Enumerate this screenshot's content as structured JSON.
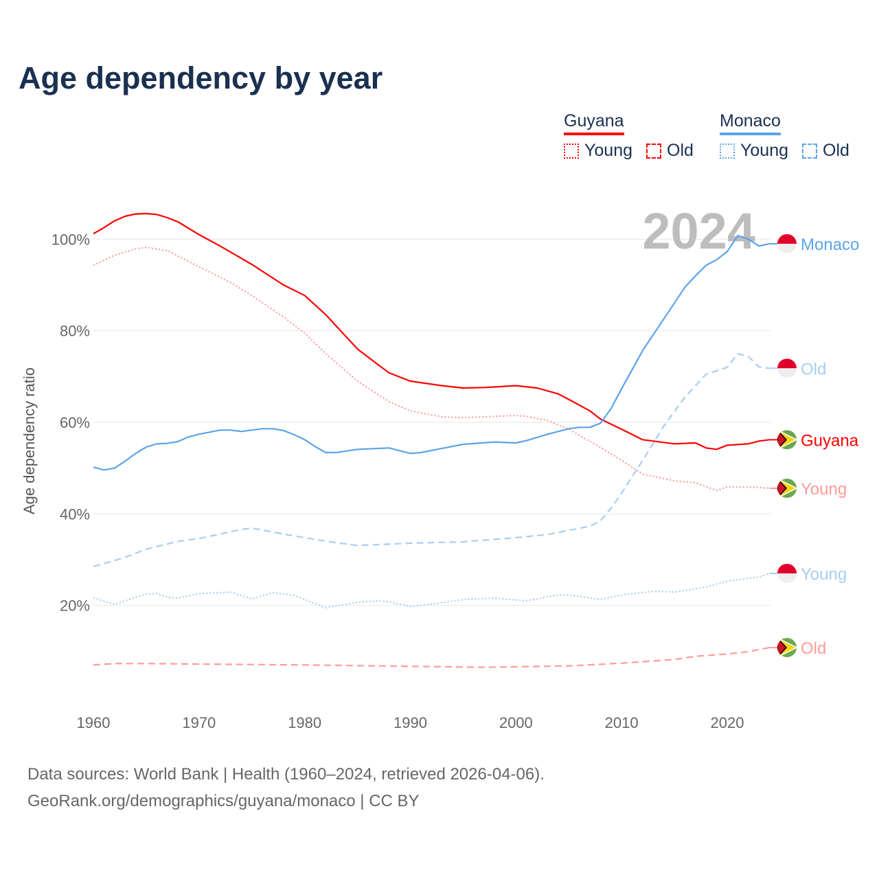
{
  "title": "Age dependency by year",
  "legend": {
    "guyana": "Guyana",
    "monaco": "Monaco",
    "young": "Young",
    "old": "Old"
  },
  "year_label": "2024",
  "source_line1": "Data sources: World Bank | Health (1960–2024, retrieved 2026-04-06).",
  "source_line2": "GeoRank.org/demographics/guyana/monaco | CC BY",
  "colors": {
    "guyana": "#ff0000",
    "guyana_light": "#ff9a9a",
    "monaco": "#5ba3e8",
    "monaco_light": "#a9cdf2"
  },
  "chart_data": {
    "type": "line",
    "title": "Age dependency by year",
    "xlabel": "",
    "ylabel": "Age dependency ratio",
    "xlim": [
      1960,
      2024
    ],
    "ylim": [
      0,
      110
    ],
    "xticks": [
      "1960",
      "1970",
      "1980",
      "1990",
      "2000",
      "2010",
      "2020"
    ],
    "yticks": [
      "20%",
      "40%",
      "60%",
      "80%",
      "100%"
    ],
    "series": [
      {
        "name": "Guyana",
        "end_label": "Guyana",
        "style": "solid",
        "color": "#ff0000",
        "flag": "guyana",
        "points": [
          [
            1960,
            101.2
          ],
          [
            1961,
            102.5
          ],
          [
            1962,
            104
          ],
          [
            1963,
            105
          ],
          [
            1964,
            105.5
          ],
          [
            1965,
            105.6
          ],
          [
            1966,
            105.4
          ],
          [
            1967,
            104.7
          ],
          [
            1968,
            103.8
          ],
          [
            1970,
            101
          ],
          [
            1972,
            98.5
          ],
          [
            1975,
            94.5
          ],
          [
            1978,
            90
          ],
          [
            1980,
            87.7
          ],
          [
            1982,
            83.5
          ],
          [
            1985,
            76
          ],
          [
            1987,
            72.5
          ],
          [
            1988,
            70.8
          ],
          [
            1990,
            69
          ],
          [
            1993,
            68
          ],
          [
            1995,
            67.5
          ],
          [
            1997,
            67.6
          ],
          [
            2000,
            68
          ],
          [
            2002,
            67.5
          ],
          [
            2004,
            66.2
          ],
          [
            2005,
            65
          ],
          [
            2007,
            62.5
          ],
          [
            2008,
            60.7
          ],
          [
            2010,
            58.5
          ],
          [
            2012,
            56.2
          ],
          [
            2015,
            55.3
          ],
          [
            2017,
            55.5
          ],
          [
            2018,
            54.4
          ],
          [
            2019,
            54.1
          ],
          [
            2020,
            55
          ],
          [
            2022,
            55.3
          ],
          [
            2023,
            55.9
          ],
          [
            2024,
            56.2
          ]
        ]
      },
      {
        "name": "Guyana Young",
        "end_label": "Young",
        "style": "dotted",
        "color": "#ff9a9a",
        "flag": "guyana",
        "points": [
          [
            1960,
            94.3
          ],
          [
            1962,
            96.5
          ],
          [
            1964,
            97.9
          ],
          [
            1965,
            98.2
          ],
          [
            1967,
            97.5
          ],
          [
            1970,
            94
          ],
          [
            1973,
            90.5
          ],
          [
            1975,
            87.7
          ],
          [
            1978,
            83
          ],
          [
            1980,
            79.5
          ],
          [
            1982,
            75
          ],
          [
            1985,
            69
          ],
          [
            1988,
            64.5
          ],
          [
            1990,
            62.5
          ],
          [
            1993,
            61.2
          ],
          [
            1995,
            61
          ],
          [
            2000,
            61.5
          ],
          [
            2001,
            61.3
          ],
          [
            2003,
            60.4
          ],
          [
            2005,
            58.5
          ],
          [
            2008,
            54.5
          ],
          [
            2010,
            51.7
          ],
          [
            2012,
            48.7
          ],
          [
            2015,
            47.2
          ],
          [
            2017,
            46.8
          ],
          [
            2019,
            45.1
          ],
          [
            2020,
            45.9
          ],
          [
            2023,
            45.8
          ],
          [
            2024,
            45.6
          ]
        ]
      },
      {
        "name": "Guyana Old",
        "end_label": "Old",
        "style": "dashed",
        "color": "#ff9a9a",
        "flag": "guyana",
        "points": [
          [
            1960,
            7
          ],
          [
            1962,
            7.3
          ],
          [
            1965,
            7.3
          ],
          [
            1970,
            7.2
          ],
          [
            1980,
            7
          ],
          [
            1990,
            6.7
          ],
          [
            1997,
            6.5
          ],
          [
            2005,
            6.8
          ],
          [
            2010,
            7.4
          ],
          [
            2015,
            8.2
          ],
          [
            2017,
            8.9
          ],
          [
            2020,
            9.4
          ],
          [
            2022,
            9.9
          ],
          [
            2024,
            10.8
          ]
        ]
      },
      {
        "name": "Monaco",
        "end_label": "Monaco",
        "style": "solid",
        "color": "#5ba3e8",
        "flag": "monaco",
        "points": [
          [
            1960,
            50.2
          ],
          [
            1961,
            49.6
          ],
          [
            1962,
            50
          ],
          [
            1963,
            51.5
          ],
          [
            1964,
            53.2
          ],
          [
            1965,
            54.6
          ],
          [
            1966,
            55.3
          ],
          [
            1967,
            55.4
          ],
          [
            1968,
            55.8
          ],
          [
            1969,
            56.8
          ],
          [
            1970,
            57.4
          ],
          [
            1972,
            58.3
          ],
          [
            1973,
            58.3
          ],
          [
            1974,
            58
          ],
          [
            1976,
            58.6
          ],
          [
            1977,
            58.6
          ],
          [
            1978,
            58.2
          ],
          [
            1979,
            57.3
          ],
          [
            1980,
            56.2
          ],
          [
            1981,
            54.7
          ],
          [
            1982,
            53.4
          ],
          [
            1983,
            53.4
          ],
          [
            1985,
            54.1
          ],
          [
            1988,
            54.4
          ],
          [
            1990,
            53.2
          ],
          [
            1991,
            53.4
          ],
          [
            1995,
            55.2
          ],
          [
            1998,
            55.7
          ],
          [
            2000,
            55.5
          ],
          [
            2001,
            56
          ],
          [
            2003,
            57.4
          ],
          [
            2005,
            58.6
          ],
          [
            2006,
            58.9
          ],
          [
            2007,
            58.9
          ],
          [
            2008,
            59.8
          ],
          [
            2009,
            63
          ],
          [
            2010,
            67.3
          ],
          [
            2012,
            75.7
          ],
          [
            2014,
            82.6
          ],
          [
            2016,
            89.5
          ],
          [
            2017,
            92
          ],
          [
            2018,
            94.3
          ],
          [
            2019,
            95.5
          ],
          [
            2020,
            97.3
          ],
          [
            2021,
            100.8
          ],
          [
            2022,
            100
          ],
          [
            2023,
            98.5
          ],
          [
            2024,
            99
          ]
        ]
      },
      {
        "name": "Monaco Old",
        "end_label": "Old",
        "style": "dashed",
        "color": "#a9cdf2",
        "flag": "monaco",
        "points": [
          [
            1960,
            28.5
          ],
          [
            1963,
            30.5
          ],
          [
            1965,
            32.3
          ],
          [
            1968,
            34
          ],
          [
            1970,
            34.6
          ],
          [
            1974,
            36.6
          ],
          [
            1975,
            36.9
          ],
          [
            1978,
            35.6
          ],
          [
            1980,
            34.8
          ],
          [
            1983,
            33.7
          ],
          [
            1985,
            33.1
          ],
          [
            1990,
            33.6
          ],
          [
            1995,
            33.9
          ],
          [
            2000,
            34.8
          ],
          [
            2003,
            35.5
          ],
          [
            2005,
            36.4
          ],
          [
            2007,
            37.3
          ],
          [
            2008,
            38.5
          ],
          [
            2009,
            41.2
          ],
          [
            2010,
            44.5
          ],
          [
            2012,
            51.7
          ],
          [
            2014,
            59.2
          ],
          [
            2016,
            65.5
          ],
          [
            2018,
            70.5
          ],
          [
            2020,
            72
          ],
          [
            2021,
            75
          ],
          [
            2022,
            74.4
          ],
          [
            2023,
            72.1
          ],
          [
            2024,
            71.8
          ]
        ]
      },
      {
        "name": "Monaco Young",
        "end_label": "Young",
        "style": "dotted",
        "color": "#a9cdf2",
        "flag": "monaco",
        "points": [
          [
            1960,
            21.7
          ],
          [
            1962,
            20.2
          ],
          [
            1964,
            21.8
          ],
          [
            1965,
            22.5
          ],
          [
            1966,
            22.6
          ],
          [
            1967,
            21.8
          ],
          [
            1968,
            21.6
          ],
          [
            1970,
            22.6
          ],
          [
            1973,
            22.9
          ],
          [
            1975,
            21.4
          ],
          [
            1977,
            22.8
          ],
          [
            1979,
            22.2
          ],
          [
            1982,
            19.5
          ],
          [
            1985,
            20.7
          ],
          [
            1987,
            21
          ],
          [
            1988,
            20.8
          ],
          [
            1990,
            19.8
          ],
          [
            1992,
            20.3
          ],
          [
            1995,
            21.3
          ],
          [
            1998,
            21.6
          ],
          [
            2001,
            21
          ],
          [
            2004,
            22.3
          ],
          [
            2005,
            22.3
          ],
          [
            2008,
            21.3
          ],
          [
            2010,
            22.3
          ],
          [
            2013,
            23.1
          ],
          [
            2015,
            22.9
          ],
          [
            2018,
            24
          ],
          [
            2020,
            25.3
          ],
          [
            2023,
            26.2
          ],
          [
            2024,
            27
          ]
        ]
      }
    ]
  }
}
